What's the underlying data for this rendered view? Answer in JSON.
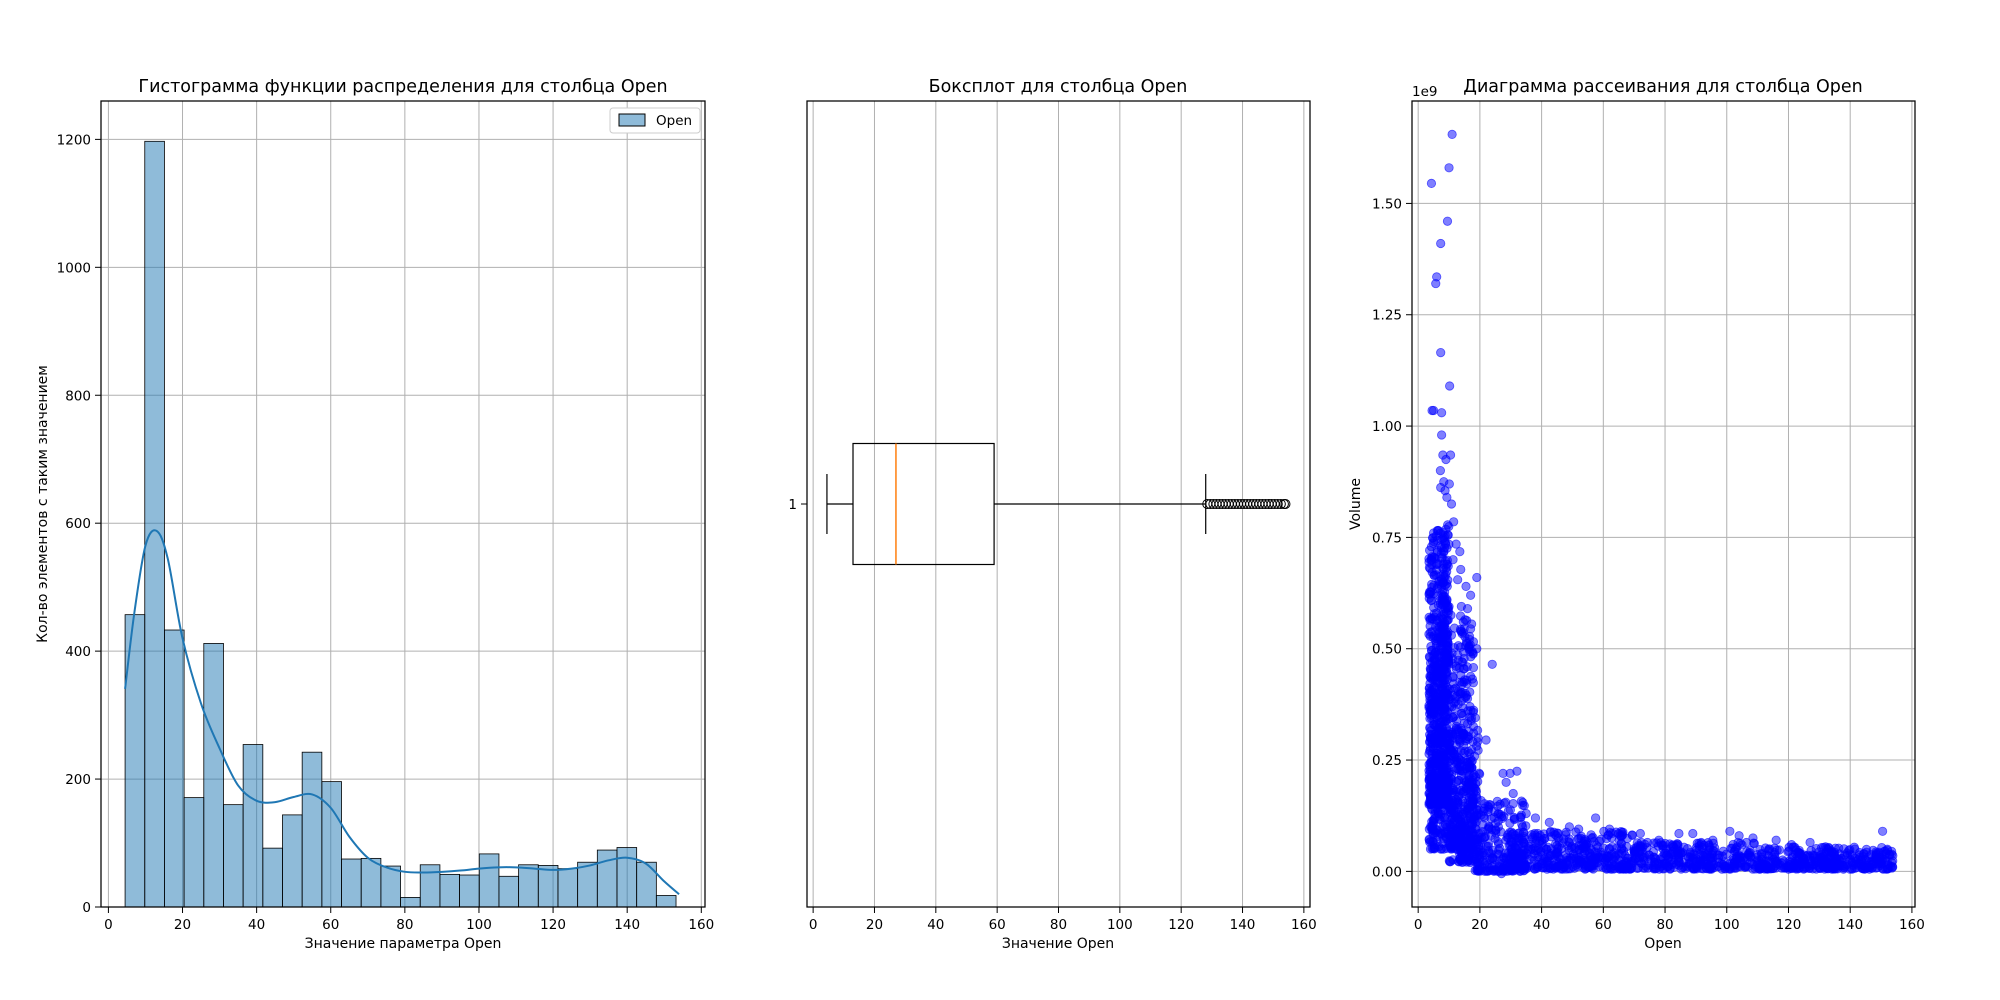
{
  "chart_data": [
    {
      "type": "bar",
      "subtype": "histogram",
      "title": "Гистограмма функции распределения для столбца Open",
      "xlabel": "Значение параметра Open",
      "ylabel": "Кол-во элементов с таким значением",
      "xlim": [
        -2,
        161
      ],
      "ylim": [
        0,
        1260
      ],
      "xticks": [
        0,
        20,
        40,
        60,
        80,
        100,
        120,
        140,
        160
      ],
      "yticks": [
        0,
        200,
        400,
        600,
        800,
        1000,
        1200
      ],
      "grid": true,
      "legend": {
        "position": "top-right",
        "entries": [
          "Open"
        ]
      },
      "bar_color": "#1f77b4",
      "bin_start": 4.5,
      "bin_width": 5.31,
      "values": [
        457,
        1197,
        433,
        171,
        412,
        160,
        254,
        92,
        144,
        242,
        196,
        75,
        76,
        64,
        15,
        66,
        51,
        50,
        83,
        48,
        66,
        65,
        60,
        70,
        89,
        93,
        70,
        18
      ],
      "kde": {
        "x": [
          4.5,
          7,
          10,
          13,
          16,
          20,
          25,
          30,
          35,
          40,
          45,
          50,
          55,
          60,
          65,
          70,
          75,
          80,
          85,
          90,
          95,
          100,
          105,
          110,
          115,
          120,
          125,
          130,
          135,
          140,
          145,
          150,
          154
        ],
        "y": [
          341,
          460,
          565,
          588,
          545,
          420,
          318,
          248,
          190,
          166,
          164,
          172,
          176,
          155,
          110,
          77,
          62,
          55,
          54,
          55,
          57,
          60,
          62,
          62,
          60,
          58,
          60,
          65,
          73,
          77,
          68,
          40,
          20
        ]
      }
    },
    {
      "type": "boxplot",
      "title": "Боксплот для столбца Open",
      "xlabel": "Значение Open",
      "ylabel": "",
      "xlim": [
        -2,
        162
      ],
      "xticks": [
        0,
        20,
        40,
        60,
        80,
        100,
        120,
        140,
        160
      ],
      "ytick_labels": [
        "1"
      ],
      "grid": true,
      "box": {
        "whisker_low": 4.5,
        "q1": 13,
        "median": 27,
        "q3": 59,
        "whisker_high": 128
      },
      "median_color": "#ff7f0e",
      "outliers": [
        128.5,
        129.5,
        130.5,
        131.5,
        132.5,
        133.5,
        134.5,
        135.5,
        136.5,
        137.5,
        138.5,
        139.5,
        140.5,
        141.5,
        142.5,
        143.5,
        144.5,
        145.5,
        146.5,
        147.5,
        148.5,
        149.5,
        150.5,
        151.5,
        152.5,
        153.5,
        154
      ]
    },
    {
      "type": "scatter",
      "title": "Диаграмма рассеивания для столбца Open",
      "xlabel": "Open",
      "ylabel": "Volume",
      "y_multiplier_label": "1e9",
      "xlim": [
        -2,
        161
      ],
      "ylim": [
        -0.08,
        1.73
      ],
      "xticks": [
        0,
        20,
        40,
        60,
        80,
        100,
        120,
        140,
        160
      ],
      "yticks": [
        0.0,
        0.25,
        0.5,
        0.75,
        1.0,
        1.25,
        1.5
      ],
      "ytick_labels": [
        "0.00",
        "0.25",
        "0.50",
        "0.75",
        "1.00",
        "1.25",
        "1.50"
      ],
      "grid": true,
      "point_color": "#0000ff",
      "point_alpha": 0.5,
      "points": [
        [
          4.3,
          1.545
        ],
        [
          6.0,
          1.335
        ],
        [
          5.7,
          1.32
        ],
        [
          7.3,
          1.41
        ],
        [
          9.5,
          1.46
        ],
        [
          10.0,
          1.58
        ],
        [
          11.0,
          1.655
        ],
        [
          7.3,
          1.165
        ],
        [
          10.2,
          1.09
        ],
        [
          4.5,
          1.035
        ],
        [
          5.0,
          1.035
        ],
        [
          7.6,
          1.03
        ],
        [
          7.6,
          0.98
        ],
        [
          8.0,
          0.935
        ],
        [
          10.5,
          0.935
        ],
        [
          9.0,
          0.925
        ],
        [
          7.2,
          0.9
        ],
        [
          8.3,
          0.875
        ],
        [
          10.1,
          0.87
        ],
        [
          7.3,
          0.862
        ],
        [
          8.7,
          0.855
        ],
        [
          9.3,
          0.84
        ],
        [
          10.8,
          0.825
        ],
        [
          11.5,
          0.785
        ],
        [
          5.0,
          0.76
        ],
        [
          8.9,
          0.735
        ],
        [
          12.3,
          0.735
        ],
        [
          13.5,
          0.718
        ],
        [
          5.2,
          0.705
        ],
        [
          11.3,
          0.7
        ],
        [
          13.8,
          0.678
        ],
        [
          12.8,
          0.655
        ],
        [
          19.0,
          0.66
        ],
        [
          15.5,
          0.64
        ],
        [
          17.0,
          0.62
        ],
        [
          14.0,
          0.595
        ],
        [
          16.0,
          0.59
        ],
        [
          15.2,
          0.565
        ],
        [
          13.8,
          0.54
        ],
        [
          19.0,
          0.5
        ],
        [
          17.8,
          0.49
        ],
        [
          24.0,
          0.465
        ],
        [
          15.0,
          0.455
        ],
        [
          14.2,
          0.42
        ],
        [
          16.8,
          0.37
        ],
        [
          18.5,
          0.345
        ],
        [
          22.0,
          0.295
        ],
        [
          27.5,
          0.22
        ],
        [
          29.8,
          0.22
        ],
        [
          32.0,
          0.225
        ],
        [
          28.5,
          0.2
        ],
        [
          30.8,
          0.175
        ],
        [
          23.0,
          0.15
        ],
        [
          21.5,
          0.12
        ],
        [
          26.0,
          0.1
        ],
        [
          35.0,
          0.13
        ],
        [
          38.0,
          0.12
        ],
        [
          42.5,
          0.11
        ],
        [
          49.0,
          0.1
        ],
        [
          52.0,
          0.095
        ],
        [
          57.5,
          0.12
        ],
        [
          62.0,
          0.095
        ],
        [
          66.0,
          0.08
        ],
        [
          72.0,
          0.085
        ],
        [
          78.0,
          0.07
        ],
        [
          84.5,
          0.085
        ],
        [
          89.0,
          0.085
        ],
        [
          95.5,
          0.07
        ],
        [
          101.0,
          0.09
        ],
        [
          104.0,
          0.08
        ],
        [
          108.5,
          0.075
        ],
        [
          116.0,
          0.07
        ],
        [
          121.0,
          0.06
        ],
        [
          127.0,
          0.065
        ],
        [
          132.0,
          0.055
        ],
        [
          141.5,
          0.05
        ],
        [
          150.5,
          0.09
        ],
        [
          27.0,
          -0.005
        ],
        [
          45.0,
          0.01
        ],
        [
          86.0,
          0.01
        ],
        [
          120.0,
          0.005
        ],
        [
          135.0,
          0.01
        ],
        [
          146.0,
          0.01
        ]
      ],
      "point_clusters": [
        {
          "x_range": [
            3.5,
            10
          ],
          "y_range": [
            0.15,
            0.78
          ],
          "count": 600
        },
        {
          "x_range": [
            3.5,
            10
          ],
          "y_range": [
            0.05,
            0.6
          ],
          "count": 220
        },
        {
          "x_range": [
            10,
            18
          ],
          "y_range": [
            0.05,
            0.58
          ],
          "count": 300
        },
        {
          "x_range": [
            10,
            20
          ],
          "y_range": [
            0.02,
            0.32
          ],
          "count": 220
        },
        {
          "x_range": [
            18,
            35
          ],
          "y_range": [
            0.0,
            0.16
          ],
          "count": 220
        },
        {
          "x_range": [
            30,
            70
          ],
          "y_range": [
            0.005,
            0.09
          ],
          "count": 380
        },
        {
          "x_range": [
            70,
            110
          ],
          "y_range": [
            0.005,
            0.065
          ],
          "count": 300
        },
        {
          "x_range": [
            110,
            154
          ],
          "y_range": [
            0.005,
            0.055
          ],
          "count": 340
        }
      ]
    }
  ]
}
